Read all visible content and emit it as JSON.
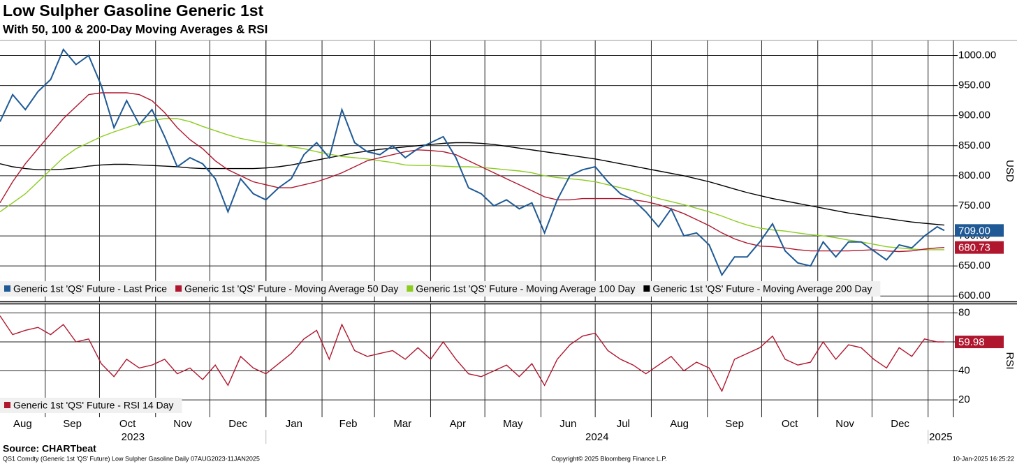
{
  "chart_data": [
    {
      "type": "line",
      "title": "Low Sulpher Gasoline Generic 1st",
      "subtitle": "With 50, 100 & 200-Day Moving Averages & RSI",
      "ylabel": "USD",
      "xlim": [
        "2023-08-07",
        "2025-01-15"
      ],
      "x": [
        "2023-08-07",
        "2023-08-14",
        "2023-08-21",
        "2023-08-28",
        "2023-09-04",
        "2023-09-11",
        "2023-09-18",
        "2023-09-25",
        "2023-10-02",
        "2023-10-09",
        "2023-10-16",
        "2023-10-23",
        "2023-10-30",
        "2023-11-06",
        "2023-11-13",
        "2023-11-20",
        "2023-11-27",
        "2023-12-04",
        "2023-12-11",
        "2023-12-18",
        "2023-12-25",
        "2024-01-01",
        "2024-01-08",
        "2024-01-15",
        "2024-01-22",
        "2024-01-29",
        "2024-02-05",
        "2024-02-12",
        "2024-02-19",
        "2024-02-26",
        "2024-03-04",
        "2024-03-11",
        "2024-03-18",
        "2024-03-25",
        "2024-04-01",
        "2024-04-08",
        "2024-04-15",
        "2024-04-22",
        "2024-04-29",
        "2024-05-06",
        "2024-05-13",
        "2024-05-20",
        "2024-05-27",
        "2024-06-03",
        "2024-06-10",
        "2024-06-17",
        "2024-06-24",
        "2024-07-01",
        "2024-07-08",
        "2024-07-15",
        "2024-07-22",
        "2024-07-29",
        "2024-08-05",
        "2024-08-12",
        "2024-08-19",
        "2024-08-26",
        "2024-09-02",
        "2024-09-09",
        "2024-09-16",
        "2024-09-23",
        "2024-09-30",
        "2024-10-07",
        "2024-10-14",
        "2024-10-21",
        "2024-10-28",
        "2024-11-04",
        "2024-11-11",
        "2024-11-18",
        "2024-11-25",
        "2024-12-02",
        "2024-12-09",
        "2024-12-16",
        "2024-12-23",
        "2024-12-30",
        "2025-01-06",
        "2025-01-10"
      ],
      "ylim": [
        591,
        1025
      ],
      "yticks": [
        {
          "value": 600,
          "label": "600.00"
        },
        {
          "value": 650,
          "label": "650.00"
        },
        {
          "value": 700,
          "label": "700.00"
        },
        {
          "value": 750,
          "label": "750.00"
        },
        {
          "value": 800,
          "label": "800.00"
        },
        {
          "value": 850,
          "label": "850.00"
        },
        {
          "value": 900,
          "label": "900.00"
        },
        {
          "value": 950,
          "label": "950.00"
        },
        {
          "value": 1000,
          "label": "1000.00"
        }
      ],
      "grid": true,
      "series": [
        {
          "name": "Generic 1st 'QS' Future - Moving Average 200 Day",
          "color": "#000000",
          "values": [
            820,
            815,
            812,
            810,
            810,
            811,
            813,
            816,
            818,
            819,
            819,
            818,
            817,
            816,
            815,
            813,
            812,
            812,
            812,
            812,
            812,
            813,
            815,
            818,
            822,
            826,
            830,
            834,
            838,
            841,
            844,
            846,
            848,
            850,
            852,
            854,
            855,
            855,
            854,
            852,
            849,
            846,
            843,
            840,
            837,
            834,
            831,
            828,
            824,
            820,
            816,
            812,
            808,
            804,
            800,
            795,
            790,
            784,
            778,
            772,
            767,
            762,
            758,
            754,
            750,
            746,
            742,
            738,
            735,
            732,
            729,
            726,
            723,
            721,
            719,
            718
          ]
        },
        {
          "name": "Generic 1st 'QS' Future - Moving Average 100 Day",
          "color": "#8ccc1f",
          "values": [
            740,
            755,
            770,
            790,
            810,
            830,
            845,
            855,
            865,
            873,
            880,
            887,
            892,
            895,
            895,
            890,
            882,
            875,
            868,
            862,
            858,
            855,
            852,
            848,
            845,
            840,
            836,
            832,
            830,
            828,
            825,
            822,
            818,
            817,
            817,
            816,
            815,
            815,
            814,
            812,
            810,
            808,
            805,
            800,
            797,
            795,
            793,
            790,
            785,
            780,
            775,
            768,
            762,
            757,
            752,
            746,
            740,
            733,
            725,
            718,
            713,
            710,
            708,
            705,
            702,
            700,
            697,
            693,
            690,
            686,
            682,
            680,
            678,
            677,
            677,
            677
          ]
        },
        {
          "name": "Generic 1st 'QS' Future - Moving Average 50 Day",
          "color": "#b0172e",
          "values": [
            755,
            790,
            820,
            845,
            870,
            895,
            915,
            935,
            938,
            938,
            938,
            935,
            925,
            905,
            880,
            860,
            845,
            825,
            810,
            800,
            790,
            785,
            780,
            780,
            785,
            790,
            797,
            805,
            815,
            825,
            830,
            835,
            840,
            843,
            842,
            840,
            835,
            825,
            815,
            805,
            795,
            785,
            775,
            765,
            760,
            760,
            762,
            762,
            762,
            762,
            760,
            757,
            752,
            745,
            737,
            727,
            717,
            705,
            695,
            688,
            683,
            682,
            680,
            677,
            675,
            675,
            675,
            675,
            676,
            677,
            675,
            674,
            675,
            678,
            680,
            680.73
          ],
          "value_labels": [
            null,
            null,
            null,
            null,
            null,
            null,
            null,
            null,
            null,
            null,
            null,
            null,
            null,
            null,
            null,
            null,
            null,
            null,
            null,
            null,
            null,
            null,
            null,
            null,
            null,
            null,
            null,
            null,
            null,
            null,
            null,
            null,
            null,
            null,
            null,
            null,
            null,
            null,
            null,
            null,
            null,
            null,
            null,
            null,
            null,
            null,
            null,
            null,
            null,
            null,
            null,
            null,
            null,
            null,
            null,
            null,
            null,
            null,
            null,
            null,
            null,
            null,
            null,
            null,
            null,
            null,
            null,
            null,
            null,
            null,
            null,
            null,
            null,
            null,
            null,
            "680.73"
          ]
        },
        {
          "name": "Generic 1st 'QS' Future - Last Price",
          "color": "#1f5a96",
          "values": [
            890,
            935,
            910,
            940,
            960,
            1010,
            985,
            1000,
            950,
            880,
            925,
            885,
            910,
            865,
            815,
            830,
            820,
            795,
            740,
            795,
            770,
            760,
            780,
            795,
            835,
            855,
            830,
            910,
            855,
            840,
            835,
            850,
            830,
            845,
            855,
            865,
            830,
            780,
            770,
            750,
            760,
            745,
            755,
            705,
            760,
            800,
            810,
            815,
            790,
            770,
            760,
            740,
            715,
            745,
            700,
            705,
            685,
            635,
            665,
            665,
            690,
            720,
            675,
            655,
            650,
            690,
            665,
            690,
            690,
            675,
            660,
            685,
            680,
            700,
            715,
            709
          ],
          "value_labels": [
            null,
            null,
            null,
            null,
            null,
            null,
            null,
            null,
            null,
            null,
            null,
            null,
            null,
            null,
            null,
            null,
            null,
            null,
            null,
            null,
            null,
            null,
            null,
            null,
            null,
            null,
            null,
            null,
            null,
            null,
            null,
            null,
            null,
            null,
            null,
            null,
            null,
            null,
            null,
            null,
            null,
            null,
            null,
            null,
            null,
            null,
            null,
            null,
            null,
            null,
            null,
            null,
            null,
            null,
            null,
            null,
            null,
            null,
            null,
            null,
            null,
            null,
            null,
            null,
            null,
            null,
            null,
            null,
            null,
            null,
            null,
            null,
            null,
            null,
            null,
            "709.00"
          ]
        }
      ],
      "legend_order": [
        3,
        2,
        1,
        0
      ]
    },
    {
      "type": "line",
      "ylabel": "RSI",
      "ylim": [
        8,
        86
      ],
      "yticks": [
        20,
        40,
        60,
        80
      ],
      "grid": true,
      "xticks": [
        {
          "value": "2023-08-01",
          "label": "Aug"
        },
        {
          "value": "2023-09-01",
          "label": "Sep"
        },
        {
          "value": "2023-10-01",
          "label": "Oct"
        },
        {
          "value": "2023-11-01",
          "label": "Nov"
        },
        {
          "value": "2023-12-01",
          "label": "Dec"
        },
        {
          "value": "2024-01-01",
          "label": "Jan"
        },
        {
          "value": "2024-02-01",
          "label": "Feb"
        },
        {
          "value": "2024-03-01",
          "label": "Mar"
        },
        {
          "value": "2024-04-01",
          "label": "Apr"
        },
        {
          "value": "2024-05-01",
          "label": "May"
        },
        {
          "value": "2024-06-01",
          "label": "Jun"
        },
        {
          "value": "2024-07-01",
          "label": "Jul"
        },
        {
          "value": "2024-08-01",
          "label": "Aug"
        },
        {
          "value": "2024-09-01",
          "label": "Sep"
        },
        {
          "value": "2024-10-01",
          "label": "Oct"
        },
        {
          "value": "2024-11-01",
          "label": "Nov"
        },
        {
          "value": "2024-12-01",
          "label": "Dec"
        }
      ],
      "years": [
        {
          "value": "2023-01-01",
          "label": "2023"
        },
        {
          "value": "2024-01-01",
          "label": "2024"
        },
        {
          "value": "2025-01-01",
          "label": "2025"
        }
      ],
      "series": [
        {
          "name": "Generic 1st 'QS' Future - RSI 14 Day",
          "color": "#b0172e",
          "values": [
            78,
            65,
            68,
            70,
            65,
            72,
            60,
            62,
            45,
            36,
            48,
            42,
            44,
            48,
            38,
            42,
            34,
            44,
            30,
            50,
            42,
            38,
            45,
            52,
            62,
            68,
            48,
            72,
            54,
            50,
            52,
            54,
            48,
            56,
            48,
            60,
            48,
            38,
            36,
            40,
            44,
            36,
            45,
            30,
            48,
            58,
            64,
            66,
            54,
            48,
            44,
            38,
            44,
            50,
            40,
            46,
            42,
            26,
            48,
            52,
            56,
            64,
            48,
            44,
            46,
            60,
            48,
            58,
            56,
            48,
            42,
            56,
            50,
            62,
            60,
            59.98
          ],
          "value_labels": [
            null,
            null,
            null,
            null,
            null,
            null,
            null,
            null,
            null,
            null,
            null,
            null,
            null,
            null,
            null,
            null,
            null,
            null,
            null,
            null,
            null,
            null,
            null,
            null,
            null,
            null,
            null,
            null,
            null,
            null,
            null,
            null,
            null,
            null,
            null,
            null,
            null,
            null,
            null,
            null,
            null,
            null,
            null,
            null,
            null,
            null,
            null,
            null,
            null,
            null,
            null,
            null,
            null,
            null,
            null,
            null,
            null,
            null,
            null,
            null,
            null,
            null,
            null,
            null,
            null,
            null,
            null,
            null,
            null,
            null,
            null,
            null,
            null,
            null,
            null,
            "59.98"
          ]
        }
      ]
    }
  ],
  "source": "Source: CHARTbeat",
  "footer": {
    "left": "QS1 Comdty (Generic 1st 'QS' Future) Low Sulpher Gasoline  Daily 07AUG2023-11JAN2025",
    "center": "Copyright© 2025 Bloomberg Finance L.P.",
    "right": "10-Jan-2025 16:25:22"
  }
}
